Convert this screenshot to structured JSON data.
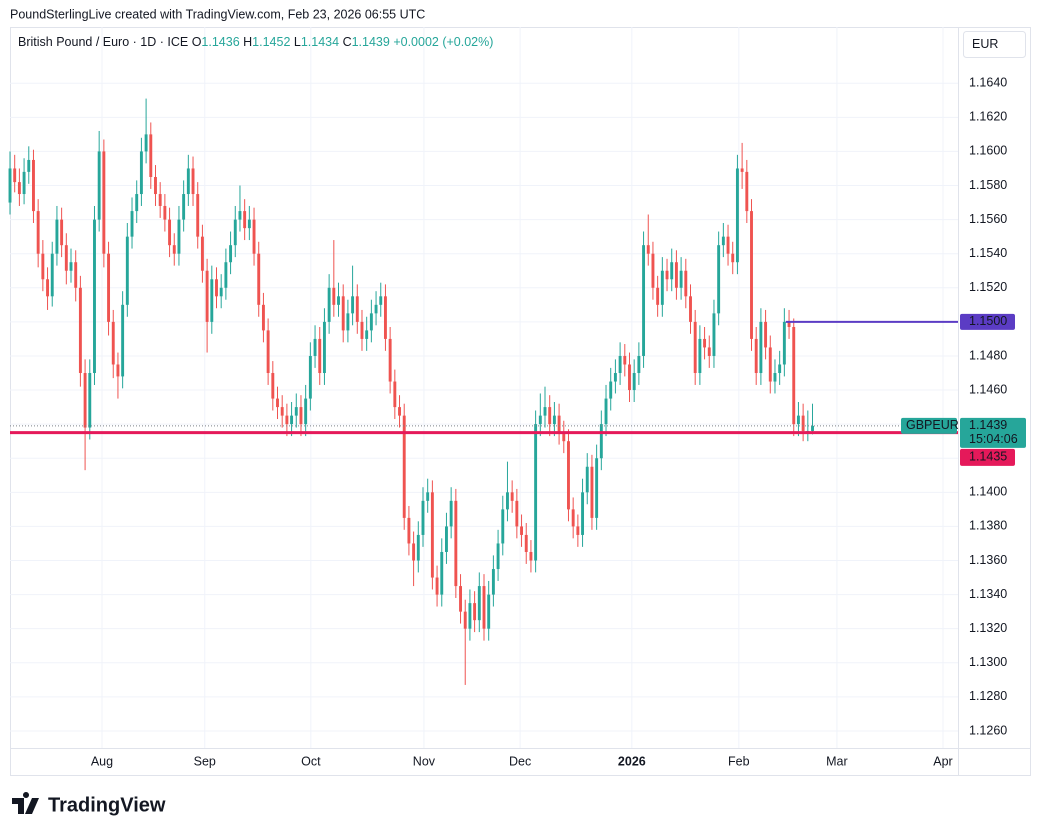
{
  "header": {
    "credit": "PoundSterlingLive created with TradingView.com, Feb 23, 2026 06:55 UTC",
    "brand": "TradingView"
  },
  "chart_data": {
    "type": "candlestick",
    "title": "British Pound / Euro · 1D · ICE",
    "symbol": "GBPEUR",
    "currency": "EUR",
    "ohlc_labels": [
      "O",
      "H",
      "L",
      "C"
    ],
    "change": "+0.0002 (+0.02%)",
    "countdown": "15:04:06",
    "up_color": "#26a69a",
    "down_color": "#ef5350",
    "grid": true,
    "xlim": [
      0,
      202
    ],
    "ylim": [
      1.125,
      1.1673
    ],
    "xticks": [
      {
        "value": 19.6,
        "label": "Aug"
      },
      {
        "value": 41.5,
        "label": "Sep"
      },
      {
        "value": 64.1,
        "label": "Oct"
      },
      {
        "value": 88.2,
        "label": "Nov"
      },
      {
        "value": 108.7,
        "label": "Dec"
      },
      {
        "value": 132.5,
        "label": "2026"
      },
      {
        "value": 155.3,
        "label": "Feb"
      },
      {
        "value": 176.2,
        "label": "Mar"
      },
      {
        "value": 198.8,
        "label": "Apr"
      }
    ],
    "yticks": [
      {
        "value": 1.126,
        "label": "1.1260"
      },
      {
        "value": 1.128,
        "label": "1.1280"
      },
      {
        "value": 1.13,
        "label": "1.1300"
      },
      {
        "value": 1.132,
        "label": "1.1320"
      },
      {
        "value": 1.134,
        "label": "1.1340"
      },
      {
        "value": 1.136,
        "label": "1.1360"
      },
      {
        "value": 1.138,
        "label": "1.1380"
      },
      {
        "value": 1.14,
        "label": "1.1400"
      },
      {
        "value": 1.142,
        "label": "1.1420"
      },
      {
        "value": 1.144,
        "label": "1.1440"
      },
      {
        "value": 1.146,
        "label": "1.1460"
      },
      {
        "value": 1.148,
        "label": "1.1480"
      },
      {
        "value": 1.15,
        "label": "1.1500"
      },
      {
        "value": 1.152,
        "label": "1.1520"
      },
      {
        "value": 1.154,
        "label": "1.1540"
      },
      {
        "value": 1.156,
        "label": "1.1560"
      },
      {
        "value": 1.158,
        "label": "1.1580"
      },
      {
        "value": 1.16,
        "label": "1.1600"
      },
      {
        "value": 1.162,
        "label": "1.1620"
      },
      {
        "value": 1.164,
        "label": "1.1640"
      }
    ],
    "lines": [
      {
        "value": 1.15,
        "label": "1.1500",
        "color": "#5b3cc4",
        "x_start": 165.3
      },
      {
        "value": 1.1435,
        "color": "#e5195a"
      }
    ],
    "ohlc": [
      [
        1.157,
        1.16,
        1.1563,
        1.159
      ],
      [
        1.159,
        1.1598,
        1.1576,
        1.1582
      ],
      [
        1.1582,
        1.159,
        1.1568,
        1.1575
      ],
      [
        1.1575,
        1.1596,
        1.1569,
        1.1588
      ],
      [
        1.1588,
        1.1603,
        1.1581,
        1.1595
      ],
      [
        1.1595,
        1.1601,
        1.1558,
        1.1565
      ],
      [
        1.1565,
        1.1572,
        1.1532,
        1.154
      ],
      [
        1.154,
        1.1548,
        1.1518,
        1.1525
      ],
      [
        1.1525,
        1.1532,
        1.1507,
        1.1515
      ],
      [
        1.1515,
        1.1547,
        1.1509,
        1.154
      ],
      [
        1.154,
        1.1568,
        1.1533,
        1.156
      ],
      [
        1.156,
        1.1567,
        1.1538,
        1.1545
      ],
      [
        1.1545,
        1.1552,
        1.1522,
        1.153
      ],
      [
        1.153,
        1.1543,
        1.1523,
        1.1535
      ],
      [
        1.1535,
        1.1542,
        1.1512,
        1.152
      ],
      [
        1.152,
        1.1527,
        1.1462,
        1.147
      ],
      [
        1.147,
        1.1478,
        1.1413,
        1.1438
      ],
      [
        1.1438,
        1.1478,
        1.1431,
        1.147
      ],
      [
        1.147,
        1.1568,
        1.1463,
        1.156
      ],
      [
        1.156,
        1.1612,
        1.1553,
        1.16
      ],
      [
        1.16,
        1.1607,
        1.1532,
        1.154
      ],
      [
        1.154,
        1.1547,
        1.1492,
        1.15
      ],
      [
        1.15,
        1.1507,
        1.1467,
        1.1475
      ],
      [
        1.1475,
        1.1482,
        1.1455,
        1.1468
      ],
      [
        1.1468,
        1.1518,
        1.1461,
        1.151
      ],
      [
        1.151,
        1.1558,
        1.1503,
        1.155
      ],
      [
        1.155,
        1.1573,
        1.1543,
        1.1565
      ],
      [
        1.1565,
        1.1583,
        1.1558,
        1.1575
      ],
      [
        1.1575,
        1.1608,
        1.1568,
        1.16
      ],
      [
        1.16,
        1.1631,
        1.1593,
        1.161
      ],
      [
        1.161,
        1.1617,
        1.1578,
        1.1585
      ],
      [
        1.1585,
        1.1592,
        1.1568,
        1.1575
      ],
      [
        1.1575,
        1.1582,
        1.1561,
        1.1568
      ],
      [
        1.1568,
        1.1575,
        1.1553,
        1.156
      ],
      [
        1.156,
        1.1567,
        1.1538,
        1.1545
      ],
      [
        1.1545,
        1.1552,
        1.1533,
        1.154
      ],
      [
        1.154,
        1.1568,
        1.1533,
        1.156
      ],
      [
        1.156,
        1.1583,
        1.1553,
        1.1575
      ],
      [
        1.1575,
        1.1598,
        1.1568,
        1.159
      ],
      [
        1.159,
        1.1597,
        1.1568,
        1.1575
      ],
      [
        1.1575,
        1.1582,
        1.1543,
        1.155
      ],
      [
        1.155,
        1.1557,
        1.1523,
        1.153
      ],
      [
        1.153,
        1.1537,
        1.1482,
        1.15
      ],
      [
        1.15,
        1.1533,
        1.1493,
        1.1525
      ],
      [
        1.1525,
        1.1532,
        1.1508,
        1.1515
      ],
      [
        1.1515,
        1.1528,
        1.1508,
        1.152
      ],
      [
        1.152,
        1.1543,
        1.1513,
        1.1535
      ],
      [
        1.1535,
        1.1553,
        1.1528,
        1.1545
      ],
      [
        1.1545,
        1.1568,
        1.1538,
        1.156
      ],
      [
        1.156,
        1.158,
        1.1553,
        1.1565
      ],
      [
        1.1565,
        1.1572,
        1.1548,
        1.1555
      ],
      [
        1.1555,
        1.1568,
        1.1548,
        1.156
      ],
      [
        1.156,
        1.1567,
        1.1533,
        1.154
      ],
      [
        1.154,
        1.1547,
        1.1503,
        1.151
      ],
      [
        1.151,
        1.1517,
        1.1488,
        1.1495
      ],
      [
        1.1495,
        1.1502,
        1.1463,
        1.147
      ],
      [
        1.147,
        1.1477,
        1.1448,
        1.1455
      ],
      [
        1.1455,
        1.1462,
        1.1443,
        1.145
      ],
      [
        1.145,
        1.1457,
        1.1438,
        1.1445
      ],
      [
        1.1445,
        1.1452,
        1.1433,
        1.144
      ],
      [
        1.144,
        1.1453,
        1.1433,
        1.1445
      ],
      [
        1.1445,
        1.1458,
        1.1438,
        1.145
      ],
      [
        1.145,
        1.1457,
        1.1433,
        1.144
      ],
      [
        1.144,
        1.1463,
        1.1433,
        1.1455
      ],
      [
        1.1455,
        1.1488,
        1.1448,
        1.148
      ],
      [
        1.148,
        1.1498,
        1.1473,
        1.149
      ],
      [
        1.149,
        1.1497,
        1.1463,
        1.147
      ],
      [
        1.147,
        1.1508,
        1.1463,
        1.15
      ],
      [
        1.15,
        1.1528,
        1.1493,
        1.152
      ],
      [
        1.152,
        1.1548,
        1.1503,
        1.151
      ],
      [
        1.151,
        1.1523,
        1.1503,
        1.1515
      ],
      [
        1.1515,
        1.1522,
        1.1488,
        1.1495
      ],
      [
        1.1495,
        1.1513,
        1.1488,
        1.1505
      ],
      [
        1.1505,
        1.1533,
        1.1498,
        1.1515
      ],
      [
        1.1515,
        1.1522,
        1.1493,
        1.15
      ],
      [
        1.15,
        1.1507,
        1.1483,
        1.149
      ],
      [
        1.149,
        1.1503,
        1.1483,
        1.1495
      ],
      [
        1.1495,
        1.1513,
        1.1488,
        1.1505
      ],
      [
        1.1505,
        1.1518,
        1.1498,
        1.151
      ],
      [
        1.151,
        1.1523,
        1.1503,
        1.1515
      ],
      [
        1.1515,
        1.1522,
        1.1483,
        1.149
      ],
      [
        1.149,
        1.1497,
        1.1458,
        1.1465
      ],
      [
        1.1465,
        1.1472,
        1.1443,
        1.145
      ],
      [
        1.145,
        1.1457,
        1.1438,
        1.1445
      ],
      [
        1.1445,
        1.1452,
        1.1378,
        1.1385
      ],
      [
        1.1385,
        1.1392,
        1.1363,
        1.137
      ],
      [
        1.137,
        1.1377,
        1.1345,
        1.136
      ],
      [
        1.136,
        1.1383,
        1.1353,
        1.1375
      ],
      [
        1.1375,
        1.1403,
        1.1368,
        1.1395
      ],
      [
        1.1395,
        1.1408,
        1.1388,
        1.14
      ],
      [
        1.14,
        1.1407,
        1.1343,
        1.135
      ],
      [
        1.135,
        1.1357,
        1.1333,
        1.134
      ],
      [
        1.134,
        1.1373,
        1.1333,
        1.1365
      ],
      [
        1.1365,
        1.1388,
        1.1358,
        1.138
      ],
      [
        1.138,
        1.1403,
        1.1373,
        1.1395
      ],
      [
        1.1395,
        1.1402,
        1.1338,
        1.1345
      ],
      [
        1.1345,
        1.1352,
        1.1323,
        1.133
      ],
      [
        1.133,
        1.1337,
        1.1287,
        1.132
      ],
      [
        1.132,
        1.1343,
        1.1313,
        1.1335
      ],
      [
        1.1335,
        1.1342,
        1.1318,
        1.1325
      ],
      [
        1.1325,
        1.1353,
        1.1318,
        1.1345
      ],
      [
        1.1345,
        1.1352,
        1.1313,
        1.132
      ],
      [
        1.132,
        1.1348,
        1.1313,
        1.134
      ],
      [
        1.134,
        1.1363,
        1.1333,
        1.1355
      ],
      [
        1.1355,
        1.1378,
        1.1348,
        1.137
      ],
      [
        1.137,
        1.1398,
        1.1363,
        1.139
      ],
      [
        1.139,
        1.1418,
        1.1383,
        1.14
      ],
      [
        1.14,
        1.1407,
        1.1388,
        1.1395
      ],
      [
        1.1395,
        1.1402,
        1.1373,
        1.138
      ],
      [
        1.138,
        1.1387,
        1.1368,
        1.1375
      ],
      [
        1.1375,
        1.1382,
        1.1358,
        1.1365
      ],
      [
        1.1365,
        1.1372,
        1.1353,
        1.136
      ],
      [
        1.136,
        1.1448,
        1.1353,
        1.144
      ],
      [
        1.144,
        1.1458,
        1.1433,
        1.1445
      ],
      [
        1.1445,
        1.1462,
        1.1438,
        1.145
      ],
      [
        1.145,
        1.1457,
        1.1433,
        1.144
      ],
      [
        1.144,
        1.1453,
        1.1433,
        1.1445
      ],
      [
        1.1445,
        1.1452,
        1.1428,
        1.1435
      ],
      [
        1.1435,
        1.1442,
        1.1423,
        1.143
      ],
      [
        1.143,
        1.1437,
        1.1383,
        1.139
      ],
      [
        1.139,
        1.1397,
        1.1373,
        1.138
      ],
      [
        1.138,
        1.1387,
        1.1368,
        1.1375
      ],
      [
        1.1375,
        1.1408,
        1.1368,
        1.14
      ],
      [
        1.14,
        1.1423,
        1.1393,
        1.1415
      ],
      [
        1.1415,
        1.1422,
        1.1378,
        1.1385
      ],
      [
        1.1385,
        1.1428,
        1.1378,
        1.142
      ],
      [
        1.142,
        1.1448,
        1.1413,
        1.144
      ],
      [
        1.144,
        1.1463,
        1.1433,
        1.1455
      ],
      [
        1.1455,
        1.1473,
        1.1448,
        1.1465
      ],
      [
        1.1465,
        1.1478,
        1.1458,
        1.147
      ],
      [
        1.147,
        1.1488,
        1.1463,
        1.148
      ],
      [
        1.148,
        1.1487,
        1.1468,
        1.1475
      ],
      [
        1.1475,
        1.1482,
        1.1453,
        1.146
      ],
      [
        1.146,
        1.1478,
        1.1453,
        1.147
      ],
      [
        1.147,
        1.1488,
        1.1463,
        1.148
      ],
      [
        1.148,
        1.1553,
        1.1473,
        1.1545
      ],
      [
        1.1545,
        1.1563,
        1.1533,
        1.154
      ],
      [
        1.154,
        1.1547,
        1.1513,
        1.152
      ],
      [
        1.152,
        1.1527,
        1.1503,
        1.151
      ],
      [
        1.151,
        1.1538,
        1.1503,
        1.153
      ],
      [
        1.153,
        1.1537,
        1.1518,
        1.1525
      ],
      [
        1.1525,
        1.1543,
        1.1518,
        1.1535
      ],
      [
        1.1535,
        1.1542,
        1.1513,
        1.152
      ],
      [
        1.152,
        1.1538,
        1.1513,
        1.153
      ],
      [
        1.153,
        1.1537,
        1.1508,
        1.1515
      ],
      [
        1.1515,
        1.1522,
        1.1493,
        1.15
      ],
      [
        1.15,
        1.1507,
        1.1463,
        1.147
      ],
      [
        1.147,
        1.1498,
        1.1463,
        1.149
      ],
      [
        1.149,
        1.1497,
        1.1478,
        1.1485
      ],
      [
        1.1485,
        1.1492,
        1.1473,
        1.148
      ],
      [
        1.148,
        1.1513,
        1.1473,
        1.1505
      ],
      [
        1.1505,
        1.1553,
        1.1498,
        1.1545
      ],
      [
        1.1545,
        1.1558,
        1.1538,
        1.155
      ],
      [
        1.155,
        1.1557,
        1.1533,
        1.154
      ],
      [
        1.154,
        1.1547,
        1.1528,
        1.1535
      ],
      [
        1.1535,
        1.1598,
        1.1528,
        1.159
      ],
      [
        1.159,
        1.1605,
        1.1578,
        1.1588
      ],
      [
        1.1588,
        1.1595,
        1.1558,
        1.1565
      ],
      [
        1.1565,
        1.1572,
        1.1483,
        1.149
      ],
      [
        1.149,
        1.1497,
        1.1463,
        1.147
      ],
      [
        1.147,
        1.1508,
        1.1463,
        1.15
      ],
      [
        1.15,
        1.1507,
        1.1478,
        1.1485
      ],
      [
        1.1485,
        1.1492,
        1.1458,
        1.1465
      ],
      [
        1.1465,
        1.1478,
        1.1458,
        1.147
      ],
      [
        1.147,
        1.1483,
        1.1463,
        1.1475
      ],
      [
        1.1475,
        1.1508,
        1.1468,
        1.15
      ],
      [
        1.15,
        1.1507,
        1.149,
        1.1497
      ],
      [
        1.1497,
        1.1502,
        1.1433,
        1.144
      ],
      [
        1.144,
        1.1453,
        1.1433,
        1.1445
      ],
      [
        1.1445,
        1.1452,
        1.143,
        1.1436
      ],
      [
        1.1436,
        1.1448,
        1.143,
        1.1436
      ],
      [
        1.1436,
        1.1452,
        1.1434,
        1.1439
      ]
    ]
  }
}
